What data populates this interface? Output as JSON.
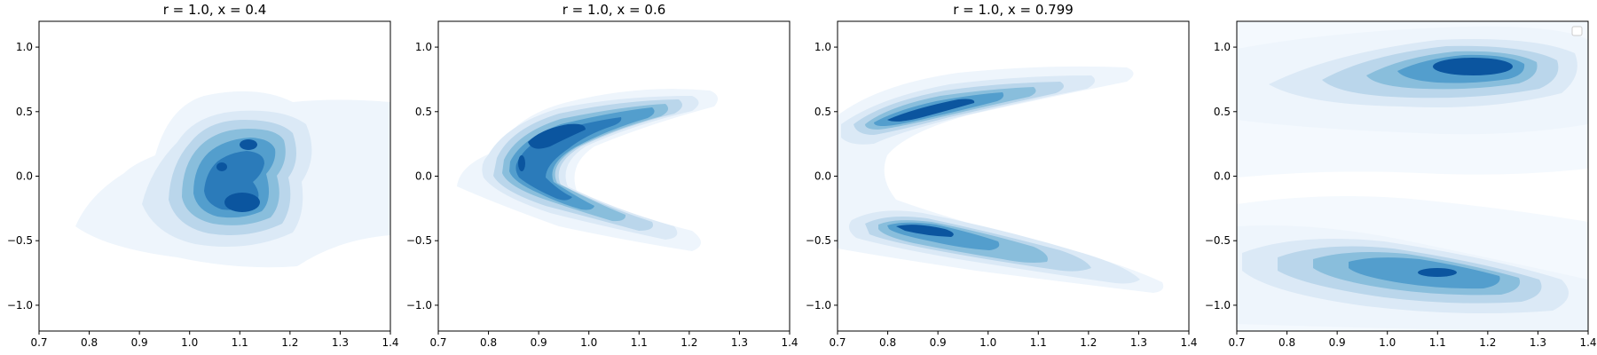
{
  "chart_data": [
    {
      "type": "contour",
      "title": "r = 1.0, x = 0.4",
      "xlim": [
        0.7,
        1.4
      ],
      "ylim": [
        -1.2,
        1.2
      ],
      "xticks": [
        "0.7",
        "0.8",
        "0.9",
        "1.0",
        "1.1",
        "1.2",
        "1.3",
        "1.4"
      ],
      "yticks": [
        "−1.0",
        "−0.5",
        "0.0",
        "0.5",
        "1.0"
      ],
      "colormap": "Blues",
      "density_peaks": [
        {
          "x": 1.1,
          "y": -0.2,
          "weight": 1.0
        },
        {
          "x": 1.12,
          "y": 0.23,
          "weight": 0.8
        },
        {
          "x": 1.05,
          "y": 0.05,
          "weight": 0.7
        }
      ]
    },
    {
      "type": "contour",
      "title": "r = 1.0, x = 0.6",
      "xlim": [
        0.7,
        1.4
      ],
      "ylim": [
        -1.2,
        1.2
      ],
      "xticks": [
        "0.7",
        "0.8",
        "0.9",
        "1.0",
        "1.1",
        "1.2",
        "1.3",
        "1.4"
      ],
      "yticks": [
        "−1.0",
        "−0.5",
        "0.0",
        "0.5",
        "1.0"
      ],
      "colormap": "Blues",
      "shape": "chevron opening right, vertex near (0.85, 0.0)",
      "density_peaks": [
        {
          "x": 0.9,
          "y": 0.28,
          "weight": 1.0
        },
        {
          "x": 0.86,
          "y": 0.0,
          "weight": 0.85
        },
        {
          "x": 0.9,
          "y": -0.3,
          "weight": 0.7
        }
      ]
    },
    {
      "type": "contour",
      "title": "r = 1.0, x = 0.799",
      "xlim": [
        0.7,
        1.4
      ],
      "ylim": [
        -1.2,
        1.2
      ],
      "xticks": [
        "0.7",
        "0.8",
        "0.9",
        "1.0",
        "1.1",
        "1.2",
        "1.3",
        "1.4"
      ],
      "yticks": [
        "−1.0",
        "−0.5",
        "0.0",
        "0.5",
        "1.0"
      ],
      "colormap": "Blues",
      "density_peaks": [
        {
          "x": 0.92,
          "y": 0.55,
          "weight": 1.0
        },
        {
          "x": 0.88,
          "y": -0.5,
          "weight": 0.95
        }
      ]
    },
    {
      "type": "contour",
      "title": "",
      "xlim": [
        0.7,
        1.4
      ],
      "ylim": [
        -1.2,
        1.2
      ],
      "xticks": [
        "0.7",
        "0.8",
        "0.9",
        "1.0",
        "1.1",
        "1.2",
        "1.3",
        "1.4"
      ],
      "yticks": [
        "−1.0",
        "−0.5",
        "0.0",
        "0.5",
        "1.0"
      ],
      "colormap": "Blues",
      "legend": "top-right (empty)",
      "density_peaks": [
        {
          "x": 1.17,
          "y": 0.88,
          "weight": 1.0
        },
        {
          "x": 1.1,
          "y": -0.85,
          "weight": 0.95
        }
      ]
    }
  ]
}
